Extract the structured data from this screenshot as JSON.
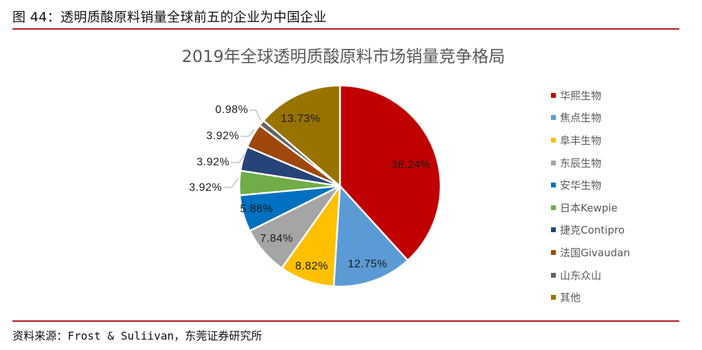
{
  "figure": {
    "caption": "图 44：透明质酸原料销量全球前五的企业为中国企业",
    "source": "资料来源：Frost & Suliivan，东莞证券研究所",
    "rule_color": "#b3161b"
  },
  "chart_data": {
    "type": "pie",
    "title": "2019年全球透明质酸原料市场销量竞争格局",
    "legend_position": "right",
    "start_angle_deg": 0,
    "direction": "clockwise",
    "categories": [
      "华熙生物",
      "焦点生物",
      "阜丰生物",
      "东辰生物",
      "安华生物",
      "日本Kewpie",
      "捷克Contipro",
      "法国Givaudan",
      "山东众山",
      "其他"
    ],
    "values": [
      38.24,
      12.75,
      8.82,
      7.84,
      5.88,
      3.92,
      3.92,
      3.92,
      0.98,
      13.73
    ],
    "labels": [
      "38.24%",
      "12.75%",
      "8.82%",
      "7.84%",
      "5.88%",
      "3.92%",
      "3.92%",
      "3.92%",
      "0.98%",
      "13.73%"
    ],
    "colors": [
      "#c00000",
      "#5b9bd5",
      "#ffc000",
      "#a5a5a5",
      "#0070c0",
      "#70ad47",
      "#264478",
      "#9e480e",
      "#636363",
      "#997300"
    ],
    "unit": "%"
  },
  "legend": {
    "items": [
      {
        "label": "华熙生物",
        "color": "#c00000"
      },
      {
        "label": "焦点生物",
        "color": "#5b9bd5"
      },
      {
        "label": "阜丰生物",
        "color": "#ffc000"
      },
      {
        "label": "东辰生物",
        "color": "#a5a5a5"
      },
      {
        "label": "安华生物",
        "color": "#0070c0"
      },
      {
        "label": "日本Kewpie",
        "color": "#70ad47"
      },
      {
        "label": "捷克Contipro",
        "color": "#264478"
      },
      {
        "label": "法国Givaudan",
        "color": "#9e480e"
      },
      {
        "label": "山东众山",
        "color": "#636363"
      },
      {
        "label": "其他",
        "color": "#997300"
      }
    ]
  }
}
